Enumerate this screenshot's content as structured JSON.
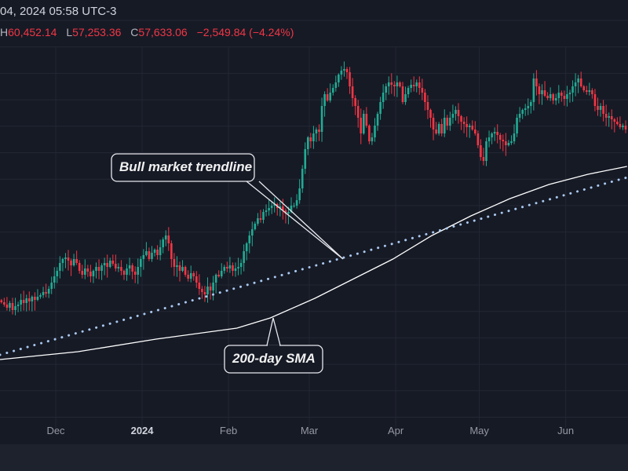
{
  "header": {
    "datetime": "04, 2024 05:58 UTC-3",
    "high_label": "H",
    "high": "60,452.14",
    "low_label": "L",
    "low": "57,253.36",
    "close_label": "C",
    "close": "57,633.06",
    "change": "−2,549.84 (−4.24%)"
  },
  "colors": {
    "background": "#161a25",
    "up": "#22ab94",
    "down": "#f23645",
    "trendline": "#a9c8f0",
    "sma": "#ffffff",
    "grid": "#232734",
    "change": "#f23645"
  },
  "chart_data": {
    "type": "candlestick",
    "grid": true,
    "x_ticks": [
      {
        "label": "Dec",
        "date": "2023-12-01",
        "bold": false
      },
      {
        "label": "2024",
        "date": "2024-01-01",
        "bold": true
      },
      {
        "label": "Feb",
        "date": "2024-02-01",
        "bold": false
      },
      {
        "label": "Mar",
        "date": "2024-03-01",
        "bold": false
      },
      {
        "label": "Apr",
        "date": "2024-04-01",
        "bold": false
      },
      {
        "label": "May",
        "date": "2024-05-01",
        "bold": false
      },
      {
        "label": "Jun",
        "date": "2024-06-01",
        "bold": false
      }
    ],
    "daily_closes": [
      37800,
      37440,
      36960,
      37680,
      36600,
      37200,
      37440,
      38160,
      37680,
      38400,
      37920,
      38640,
      38160,
      38640,
      38880,
      39360,
      39120,
      39840,
      40800,
      41760,
      42600,
      43800,
      44400,
      44640,
      44160,
      43440,
      44400,
      43800,
      42600,
      42000,
      42960,
      42480,
      41760,
      42600,
      43200,
      42600,
      43440,
      43800,
      43200,
      44160,
      43680,
      42960,
      43200,
      42600,
      42000,
      42960,
      43440,
      42480,
      42000,
      43200,
      44400,
      45000,
      45600,
      44400,
      45360,
      45840,
      45000,
      46200,
      47400,
      48000,
      46800,
      44400,
      43200,
      43440,
      42600,
      43200,
      42000,
      41400,
      42240,
      41760,
      40800,
      39840,
      39360,
      39000,
      40200,
      39600,
      40800,
      42000,
      41760,
      42600,
      43200,
      42960,
      43440,
      42600,
      42960,
      43200,
      43800,
      45600,
      46800,
      48000,
      48960,
      49800,
      50640,
      50400,
      51600,
      51840,
      52200,
      52560,
      52800,
      52200,
      52440,
      51840,
      51360,
      51600,
      52560,
      52560,
      53400,
      55200,
      58200,
      61200,
      63000,
      62400,
      63600,
      64200,
      63840,
      67800,
      69600,
      68640,
      69840,
      70560,
      71400,
      72600,
      73200,
      73440,
      72960,
      70800,
      69000,
      67800,
      66000,
      63600,
      66600,
      64800,
      62400,
      63000,
      64800,
      66600,
      68400,
      69840,
      70800,
      71400,
      71040,
      70800,
      71400,
      70800,
      68400,
      69600,
      70560,
      71040,
      70800,
      71400,
      70560,
      69840,
      68400,
      67200,
      66000,
      64200,
      63600,
      65040,
      63600,
      66000,
      64800,
      66000,
      66600,
      67200,
      66240,
      65400,
      65040,
      64560,
      64800,
      64200,
      63600,
      61800,
      60000,
      59400,
      62400,
      63000,
      63600,
      63840,
      63360,
      62640,
      62400,
      61800,
      62160,
      62400,
      63600,
      66000,
      66600,
      67200,
      67440,
      67800,
      68400,
      72000,
      70800,
      69600,
      70200,
      69360,
      69000,
      69600,
      68640,
      69000,
      69840,
      69360,
      68880,
      69600,
      69840,
      70800,
      71400,
      72000,
      70800,
      70200,
      69960,
      70200,
      69600,
      67800,
      67200,
      67800,
      66600,
      66000,
      66240,
      65760,
      65400,
      65040,
      64560,
      64800,
      64200
    ],
    "trendline": {
      "label": "Bull market trendline",
      "style": "dotted",
      "points": [
        {
          "date": "2023-11-11",
          "price": 29760
        },
        {
          "date": "2024-06-23",
          "price": 56880
        }
      ]
    },
    "sma200": {
      "label": "200-day SMA",
      "points": [
        {
          "date": "2023-11-11",
          "price": 29040
        },
        {
          "date": "2023-12-09",
          "price": 30240
        },
        {
          "date": "2024-01-06",
          "price": 32160
        },
        {
          "date": "2024-02-04",
          "price": 33840
        },
        {
          "date": "2024-02-16",
          "price": 35400
        },
        {
          "date": "2024-03-03",
          "price": 38400
        },
        {
          "date": "2024-03-17",
          "price": 41400
        },
        {
          "date": "2024-03-31",
          "price": 44400
        },
        {
          "date": "2024-04-14",
          "price": 48000
        },
        {
          "date": "2024-04-28",
          "price": 51000
        },
        {
          "date": "2024-05-12",
          "price": 53640
        },
        {
          "date": "2024-05-26",
          "price": 55800
        },
        {
          "date": "2024-06-09",
          "price": 57360
        },
        {
          "date": "2024-06-23",
          "price": 58560
        }
      ]
    }
  }
}
